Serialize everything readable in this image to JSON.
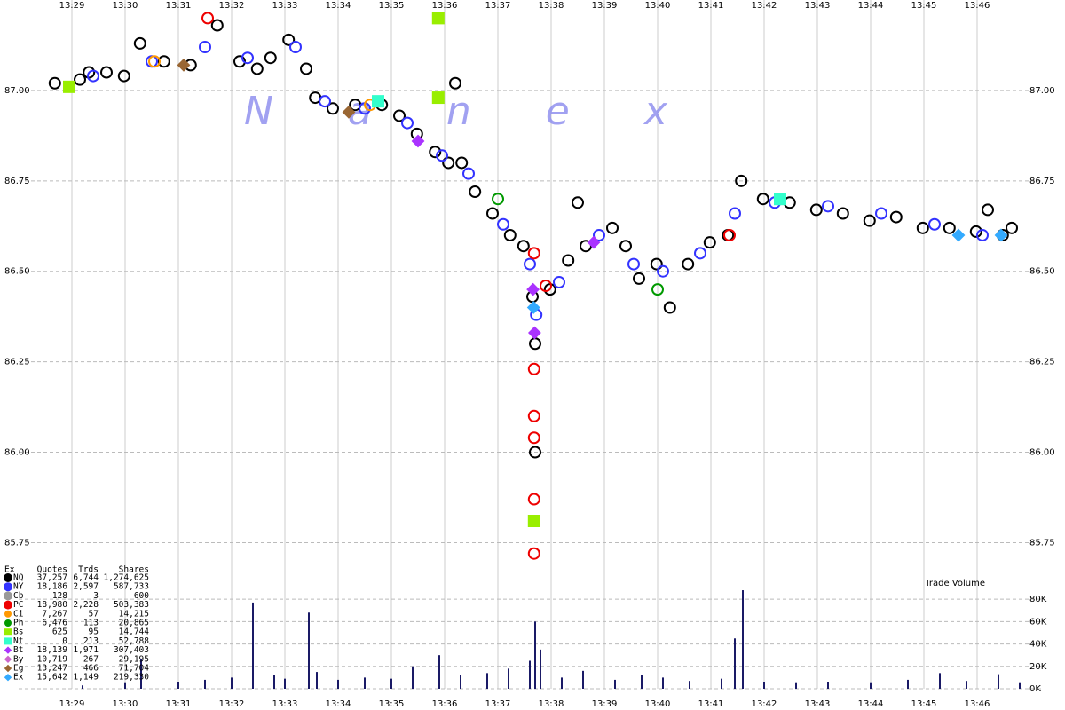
{
  "chart_data": {
    "type": "scatter",
    "watermark": "Nanex",
    "xlim": [
      808,
      827.25
    ],
    "xticks": [
      {
        "value": 809,
        "label": "13:29"
      },
      {
        "value": 810,
        "label": "13:30"
      },
      {
        "value": 811,
        "label": "13:31"
      },
      {
        "value": 812,
        "label": "13:32"
      },
      {
        "value": 813,
        "label": "13:33"
      },
      {
        "value": 814,
        "label": "13:34"
      },
      {
        "value": 815,
        "label": "13:35"
      },
      {
        "value": 816,
        "label": "13:36"
      },
      {
        "value": 817,
        "label": "13:37"
      },
      {
        "value": 818,
        "label": "13:38"
      },
      {
        "value": 819,
        "label": "13:39"
      },
      {
        "value": 820,
        "label": "13:40"
      },
      {
        "value": 821,
        "label": "13:41"
      },
      {
        "value": 822,
        "label": "13:42"
      },
      {
        "value": 823,
        "label": "13:43"
      },
      {
        "value": 824,
        "label": "13:44"
      },
      {
        "value": 825,
        "label": "13:45"
      },
      {
        "value": 826,
        "label": "13:46"
      }
    ],
    "ylim": [
      85.68,
      87.25
    ],
    "yticks": [
      {
        "value": 87.0,
        "label": "87.00"
      },
      {
        "value": 86.75,
        "label": "86.75"
      },
      {
        "value": 86.5,
        "label": "86.50"
      },
      {
        "value": 86.25,
        "label": "86.25"
      },
      {
        "value": 86.0,
        "label": "86.00"
      },
      {
        "value": 85.75,
        "label": "85.75"
      }
    ],
    "grid": true,
    "legend_header": [
      "Ex",
      "Quotes",
      "Trds",
      "Shares"
    ],
    "series": [
      {
        "name": "NQ",
        "color": "#000000",
        "marker": "circle",
        "quotes": "37,257",
        "trades": "6,744",
        "shares": "1,274,625",
        "x": [
          808.68,
          809.15,
          809.32,
          809.65,
          809.98,
          810.28,
          810.73,
          811.23,
          811.73,
          812.15,
          812.48,
          812.73,
          813.07,
          813.4,
          813.57,
          813.9,
          814.32,
          814.82,
          815.15,
          815.48,
          815.82,
          816.07,
          816.32,
          816.57,
          816.9,
          817.23,
          817.48,
          817.65,
          817.7,
          817.98,
          818.32,
          818.65,
          819.15,
          819.4,
          819.65,
          819.98,
          820.23,
          820.57,
          820.98,
          821.32,
          821.57,
          821.98,
          822.48,
          822.98,
          823.48,
          823.98,
          824.48,
          824.98,
          825.48,
          825.98,
          826.48,
          826.65,
          817.7,
          816.2,
          818.5,
          826.2
        ],
        "values": [
          87.02,
          87.03,
          87.05,
          87.05,
          87.04,
          87.13,
          87.08,
          87.07,
          87.18,
          87.08,
          87.06,
          87.09,
          87.14,
          87.06,
          86.98,
          86.95,
          86.96,
          86.96,
          86.93,
          86.88,
          86.83,
          86.8,
          86.8,
          86.72,
          86.66,
          86.6,
          86.57,
          86.43,
          86.3,
          86.45,
          86.53,
          86.57,
          86.62,
          86.57,
          86.48,
          86.52,
          86.4,
          86.52,
          86.58,
          86.6,
          86.75,
          86.7,
          86.69,
          86.67,
          86.66,
          86.64,
          86.65,
          86.62,
          86.62,
          86.61,
          86.6,
          86.62,
          86.0,
          87.02,
          86.69,
          86.67
        ]
      },
      {
        "name": "NY",
        "color": "#3333ff",
        "marker": "circle",
        "quotes": "18,186",
        "trades": "2,597",
        "shares": "587,733",
        "x": [
          809.4,
          810.5,
          811.5,
          812.3,
          813.2,
          813.75,
          814.5,
          815.3,
          815.95,
          816.45,
          817.1,
          817.6,
          817.72,
          818.15,
          818.9,
          819.55,
          820.1,
          820.8,
          821.45,
          822.2,
          823.2,
          824.2,
          825.2,
          826.1
        ],
        "values": [
          87.04,
          87.08,
          87.12,
          87.09,
          87.12,
          86.97,
          86.95,
          86.91,
          86.82,
          86.77,
          86.63,
          86.52,
          86.38,
          86.47,
          86.6,
          86.52,
          86.5,
          86.55,
          86.66,
          86.69,
          86.68,
          86.66,
          86.63,
          86.6
        ]
      },
      {
        "name": "Cb",
        "color": "#999999",
        "marker": "circle",
        "quotes": "128",
        "trades": "3",
        "shares": "600"
      },
      {
        "name": "PC",
        "color": "#ee0000",
        "marker": "circle",
        "quotes": "18,980",
        "trades": "2,228",
        "shares": "503,383",
        "x": [
          811.55,
          817.68,
          817.68,
          817.68,
          817.68,
          817.68,
          817.68,
          821.35,
          817.9
        ],
        "values": [
          87.2,
          86.55,
          86.23,
          86.1,
          86.04,
          85.87,
          85.72,
          86.6,
          86.46
        ]
      },
      {
        "name": "Ci",
        "color": "#ff9900",
        "marker": "circle",
        "quotes": "7,267",
        "trades": "57",
        "shares": "14,215",
        "x": [
          810.55,
          814.6
        ],
        "values": [
          87.08,
          86.96
        ]
      },
      {
        "name": "Ph",
        "color": "#009900",
        "marker": "circle",
        "quotes": "6,476",
        "trades": "113",
        "shares": "20,865",
        "x": [
          817.0,
          820.0
        ],
        "values": [
          86.7,
          86.45
        ]
      },
      {
        "name": "Bs",
        "color": "#99ee00",
        "marker": "square",
        "quotes": "625",
        "trades": "95",
        "shares": "14,744",
        "x": [
          815.88,
          815.88,
          817.68,
          808.95
        ],
        "values": [
          87.2,
          86.98,
          85.81,
          87.01
        ]
      },
      {
        "name": "Nt",
        "color": "#33ffcc",
        "marker": "square",
        "quotes": "0",
        "trades": "213",
        "shares": "52,788",
        "x": [
          814.75,
          822.3
        ],
        "values": [
          86.97,
          86.7
        ]
      },
      {
        "name": "Bt",
        "color": "#aa33ff",
        "marker": "diamond",
        "quotes": "18,139",
        "trades": "1,971",
        "shares": "307,403",
        "x": [
          815.5,
          817.66,
          817.69,
          818.8
        ],
        "values": [
          86.86,
          86.45,
          86.33,
          86.58
        ]
      },
      {
        "name": "By",
        "color": "#cc66cc",
        "marker": "diamond",
        "quotes": "10,719",
        "trades": "267",
        "shares": "29,195"
      },
      {
        "name": "Eg",
        "color": "#996633",
        "marker": "diamond",
        "quotes": "13,247",
        "trades": "466",
        "shares": "71,704",
        "x": [
          811.1,
          814.2
        ],
        "values": [
          87.07,
          86.94
        ]
      },
      {
        "name": "Ex",
        "color": "#33aaff",
        "marker": "diamond",
        "quotes": "15,642",
        "trades": "1,149",
        "shares": "219,330",
        "x": [
          817.67,
          825.65,
          826.45
        ],
        "values": [
          86.4,
          86.6,
          86.6
        ]
      }
    ],
    "volume": {
      "name": "Trade Volume",
      "color": "#1a1a66",
      "ylim": [
        0,
        92000
      ],
      "yticks": [
        {
          "value": 0,
          "label": "0K"
        },
        {
          "value": 20000,
          "label": "20K"
        },
        {
          "value": 40000,
          "label": "40K"
        },
        {
          "value": 60000,
          "label": "60K"
        },
        {
          "value": 80000,
          "label": "80K"
        }
      ],
      "x": [
        809.2,
        810.0,
        810.3,
        811.0,
        811.5,
        812.0,
        812.4,
        812.8,
        813.0,
        813.45,
        813.6,
        814.0,
        814.5,
        815.0,
        815.4,
        815.9,
        816.3,
        816.8,
        817.2,
        817.6,
        817.7,
        817.8,
        818.2,
        818.6,
        819.2,
        819.7,
        820.1,
        820.6,
        821.2,
        821.45,
        821.6,
        822.0,
        822.6,
        823.2,
        824.0,
        824.7,
        825.3,
        825.8,
        826.4,
        826.8
      ],
      "values": [
        3000,
        5000,
        27000,
        6000,
        8000,
        10000,
        77000,
        12000,
        9000,
        68000,
        15000,
        8000,
        10000,
        9000,
        20000,
        30000,
        12000,
        14000,
        18000,
        25000,
        60000,
        35000,
        10000,
        16000,
        8000,
        12000,
        10000,
        7000,
        9000,
        45000,
        88000,
        6000,
        5000,
        6000,
        5000,
        8000,
        14000,
        7000,
        13000,
        5000
      ]
    }
  }
}
